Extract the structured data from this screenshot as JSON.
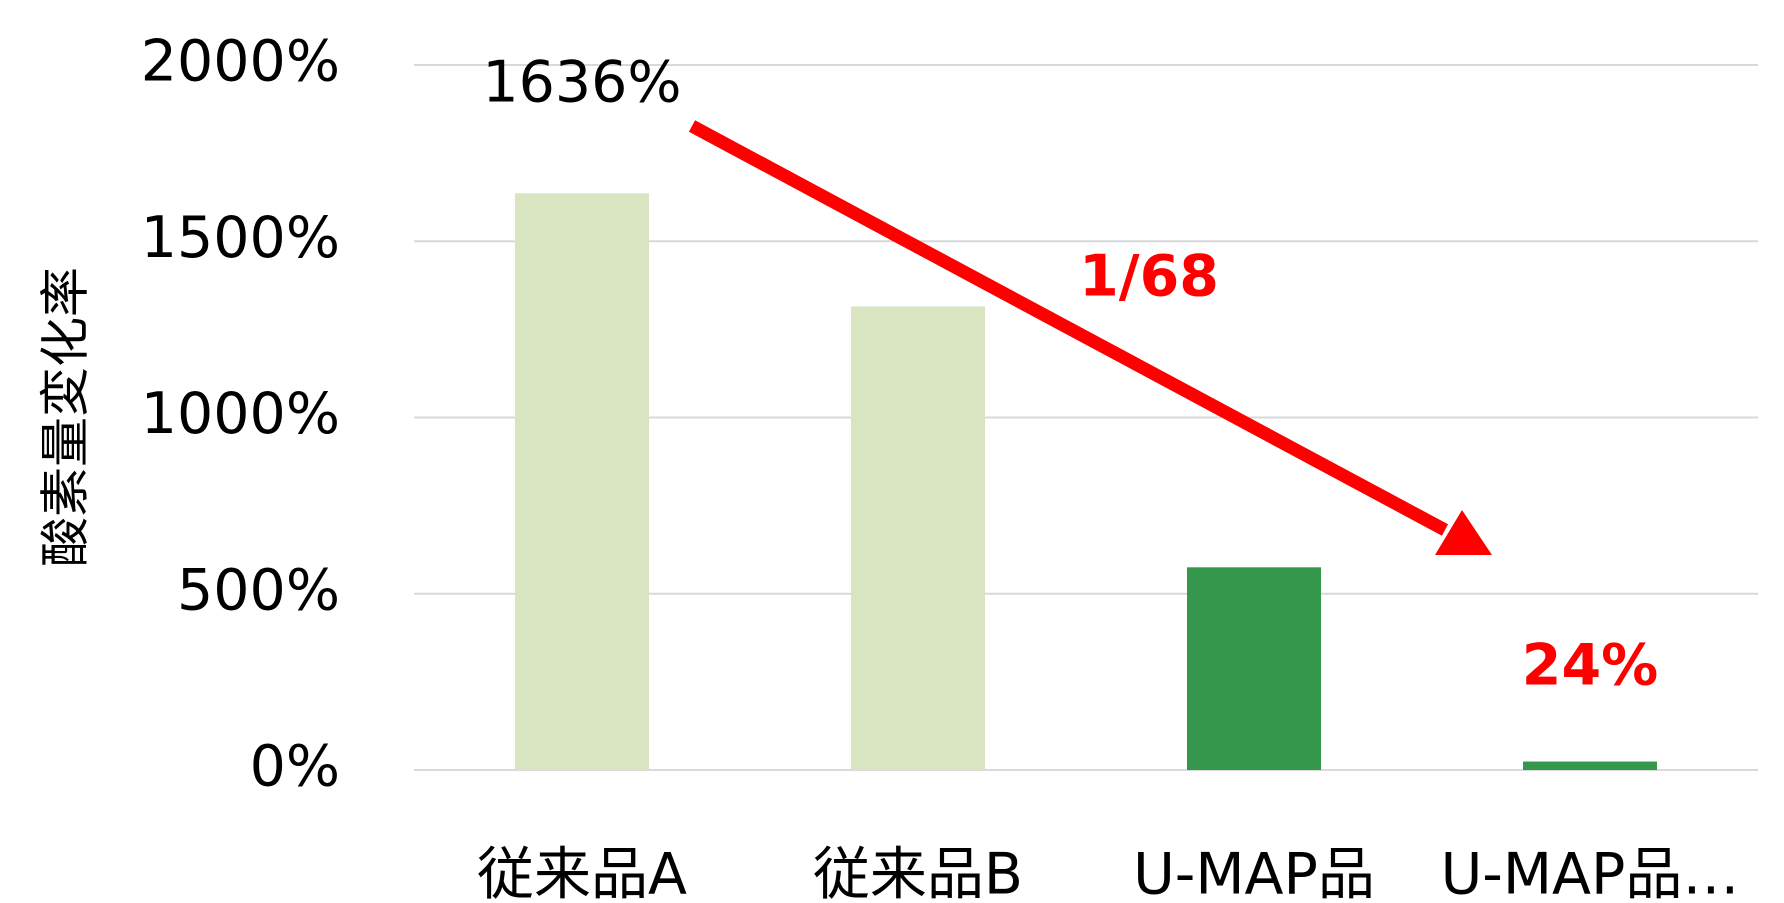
{
  "chart_data": {
    "type": "bar",
    "y_axis_label": "酸素量変化率",
    "categories": [
      "従来品A",
      "従来品B",
      "U-MAP品",
      "U-MAP品…"
    ],
    "values": [
      1636,
      1315,
      575,
      24
    ],
    "value_labels": [
      "1636%",
      null,
      null,
      "24%"
    ],
    "colors": [
      "#d9e4c1",
      "#d9e4c1",
      "#34974b",
      "#34974b"
    ],
    "annotation": "1/68",
    "ylim": [
      0,
      2000
    ],
    "yticks": [
      {
        "value": 0,
        "label": "0%"
      },
      {
        "value": 500,
        "label": "500%"
      },
      {
        "value": 1000,
        "label": "1000%"
      },
      {
        "value": 1500,
        "label": "1500%"
      },
      {
        "value": 2000,
        "label": "2000%"
      }
    ],
    "grid": true
  }
}
